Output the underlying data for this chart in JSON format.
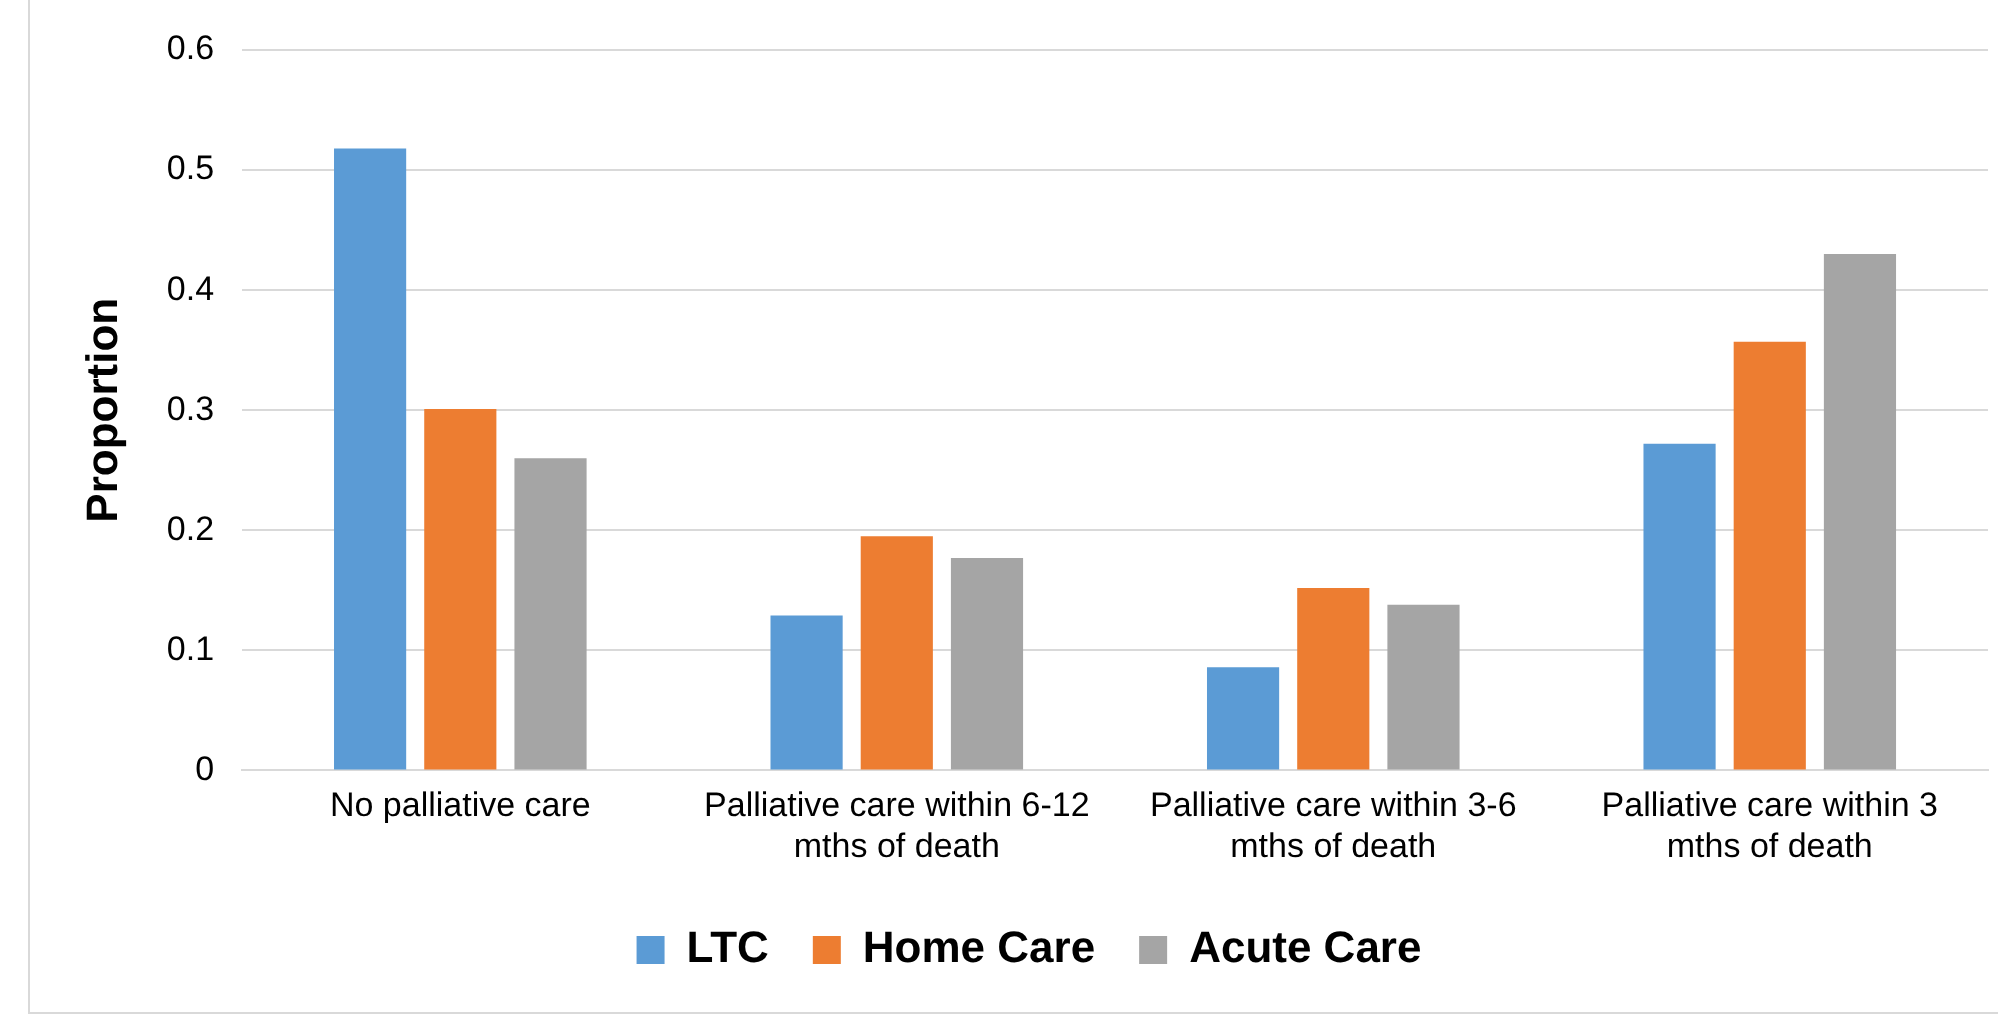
{
  "chart_data": {
    "type": "bar",
    "ylabel": "Proportion",
    "categories": [
      "No palliative care",
      "Palliative care within 6-12 mths of death",
      "Palliative care within 3-6 mths of death",
      "Palliative care within 3 mths of death"
    ],
    "series": [
      {
        "name": "LTC",
        "color": "#5b9bd5",
        "values": [
          0.518,
          0.129,
          0.086,
          0.272
        ]
      },
      {
        "name": "Home Care",
        "color": "#ed7d31",
        "values": [
          0.301,
          0.195,
          0.152,
          0.357
        ]
      },
      {
        "name": "Acute Care",
        "color": "#a5a5a5",
        "values": [
          0.26,
          0.177,
          0.138,
          0.43
        ]
      }
    ],
    "ylim": [
      0,
      0.6
    ],
    "yticks": [
      0,
      0.1,
      0.2,
      0.3,
      0.4,
      0.5,
      0.6
    ],
    "grid": "y",
    "legend": "bottom"
  }
}
